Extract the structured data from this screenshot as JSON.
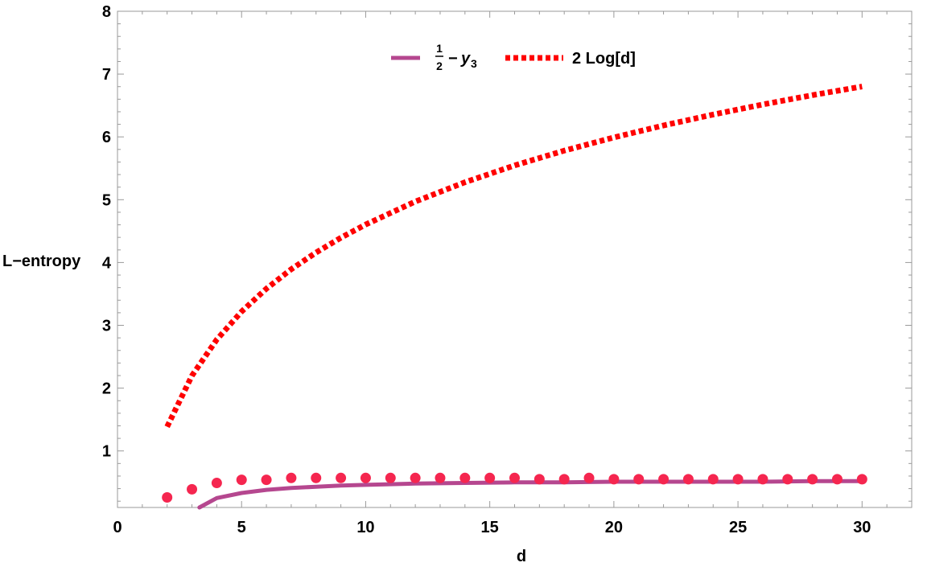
{
  "chart_data": {
    "type": "line",
    "xlabel": "d",
    "ylabel": "L−entropy",
    "xlim": [
      0,
      32
    ],
    "ylim": [
      0.1,
      8
    ],
    "x_ticks": [
      0,
      5,
      10,
      15,
      20,
      25,
      30
    ],
    "y_ticks": [
      1,
      2,
      3,
      4,
      5,
      6,
      7,
      8
    ],
    "legend": {
      "placement": "top-center",
      "entries": [
        {
          "series": "half_minus_y3",
          "frac_num": "1",
          "frac_den": "2",
          "minus": "−",
          "var": "y",
          "sub": "3"
        },
        {
          "series": "two_log_d",
          "label": "2 Log[d]"
        }
      ]
    },
    "series": [
      {
        "id": "half_minus_y3",
        "style": "solid-line",
        "color": "#b5478f",
        "x": [
          3.3,
          4,
          5,
          6,
          7,
          8,
          9,
          10,
          12,
          14,
          16,
          18,
          20,
          22,
          24,
          26,
          28,
          30
        ],
        "y": [
          0.1,
          0.25,
          0.33,
          0.38,
          0.41,
          0.43,
          0.45,
          0.46,
          0.48,
          0.49,
          0.5,
          0.5,
          0.51,
          0.51,
          0.51,
          0.51,
          0.52,
          0.52
        ]
      },
      {
        "id": "two_log_d",
        "style": "dotted-line",
        "color": "#ff0000",
        "x": [
          2,
          3,
          4,
          5,
          6,
          7,
          8,
          9,
          10,
          12,
          14,
          16,
          18,
          20,
          22,
          24,
          26,
          28,
          30
        ],
        "y": [
          1.386,
          2.197,
          2.773,
          3.219,
          3.584,
          3.892,
          4.159,
          4.394,
          4.605,
          4.97,
          5.278,
          5.545,
          5.781,
          5.991,
          6.182,
          6.356,
          6.516,
          6.664,
          6.802
        ]
      },
      {
        "id": "points",
        "style": "scatter",
        "color": "#f5264f",
        "x": [
          2,
          3,
          4,
          5,
          6,
          7,
          8,
          9,
          10,
          11,
          12,
          13,
          14,
          15,
          16,
          17,
          18,
          19,
          20,
          21,
          22,
          23,
          24,
          25,
          26,
          27,
          28,
          29,
          30
        ],
        "y": [
          0.26,
          0.39,
          0.49,
          0.54,
          0.54,
          0.57,
          0.57,
          0.57,
          0.57,
          0.57,
          0.57,
          0.57,
          0.57,
          0.57,
          0.57,
          0.55,
          0.55,
          0.57,
          0.55,
          0.55,
          0.55,
          0.55,
          0.55,
          0.55,
          0.55,
          0.55,
          0.55,
          0.55,
          0.55
        ]
      }
    ]
  }
}
